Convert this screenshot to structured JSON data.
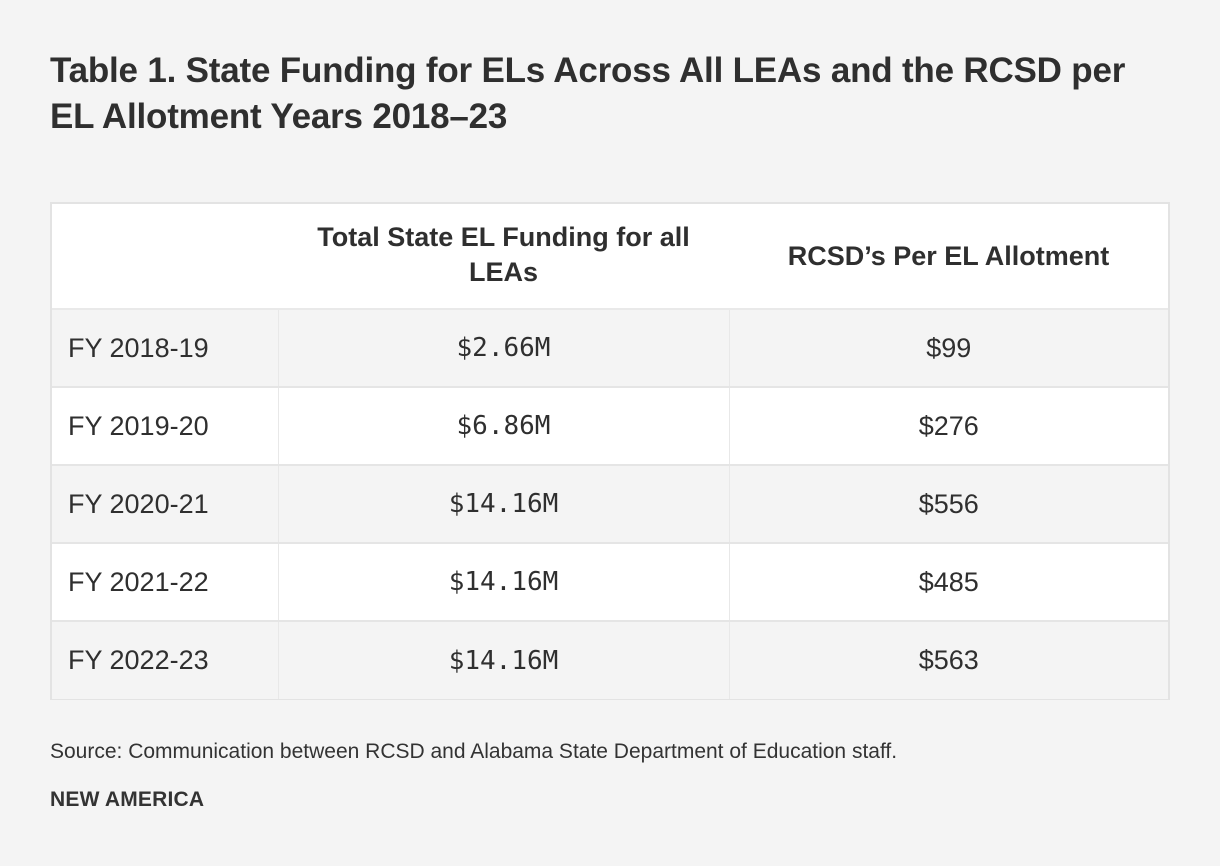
{
  "title": "Table 1. State Funding for ELs Across All LEAs and the RCSD per EL Allotment Years 2018–23",
  "table": {
    "headers": {
      "year": "",
      "funding": "Total State EL Funding for all LEAs",
      "allotment": "RCSD’s Per EL Allotment"
    },
    "rows": [
      {
        "year": "FY 2018-19",
        "funding": "$2.66M",
        "allotment": "$99"
      },
      {
        "year": "FY 2019-20",
        "funding": "$6.86M",
        "allotment": "$276"
      },
      {
        "year": "FY 2020-21",
        "funding": "$14.16M",
        "allotment": "$556"
      },
      {
        "year": "FY 2021-22",
        "funding": "$14.16M",
        "allotment": "$485"
      },
      {
        "year": "FY 2022-23",
        "funding": "$14.16M",
        "allotment": "$563"
      }
    ]
  },
  "source": "Source: Communication between RCSD and Alabama State Department of Education staff.",
  "brand": "NEW AMERICA"
}
